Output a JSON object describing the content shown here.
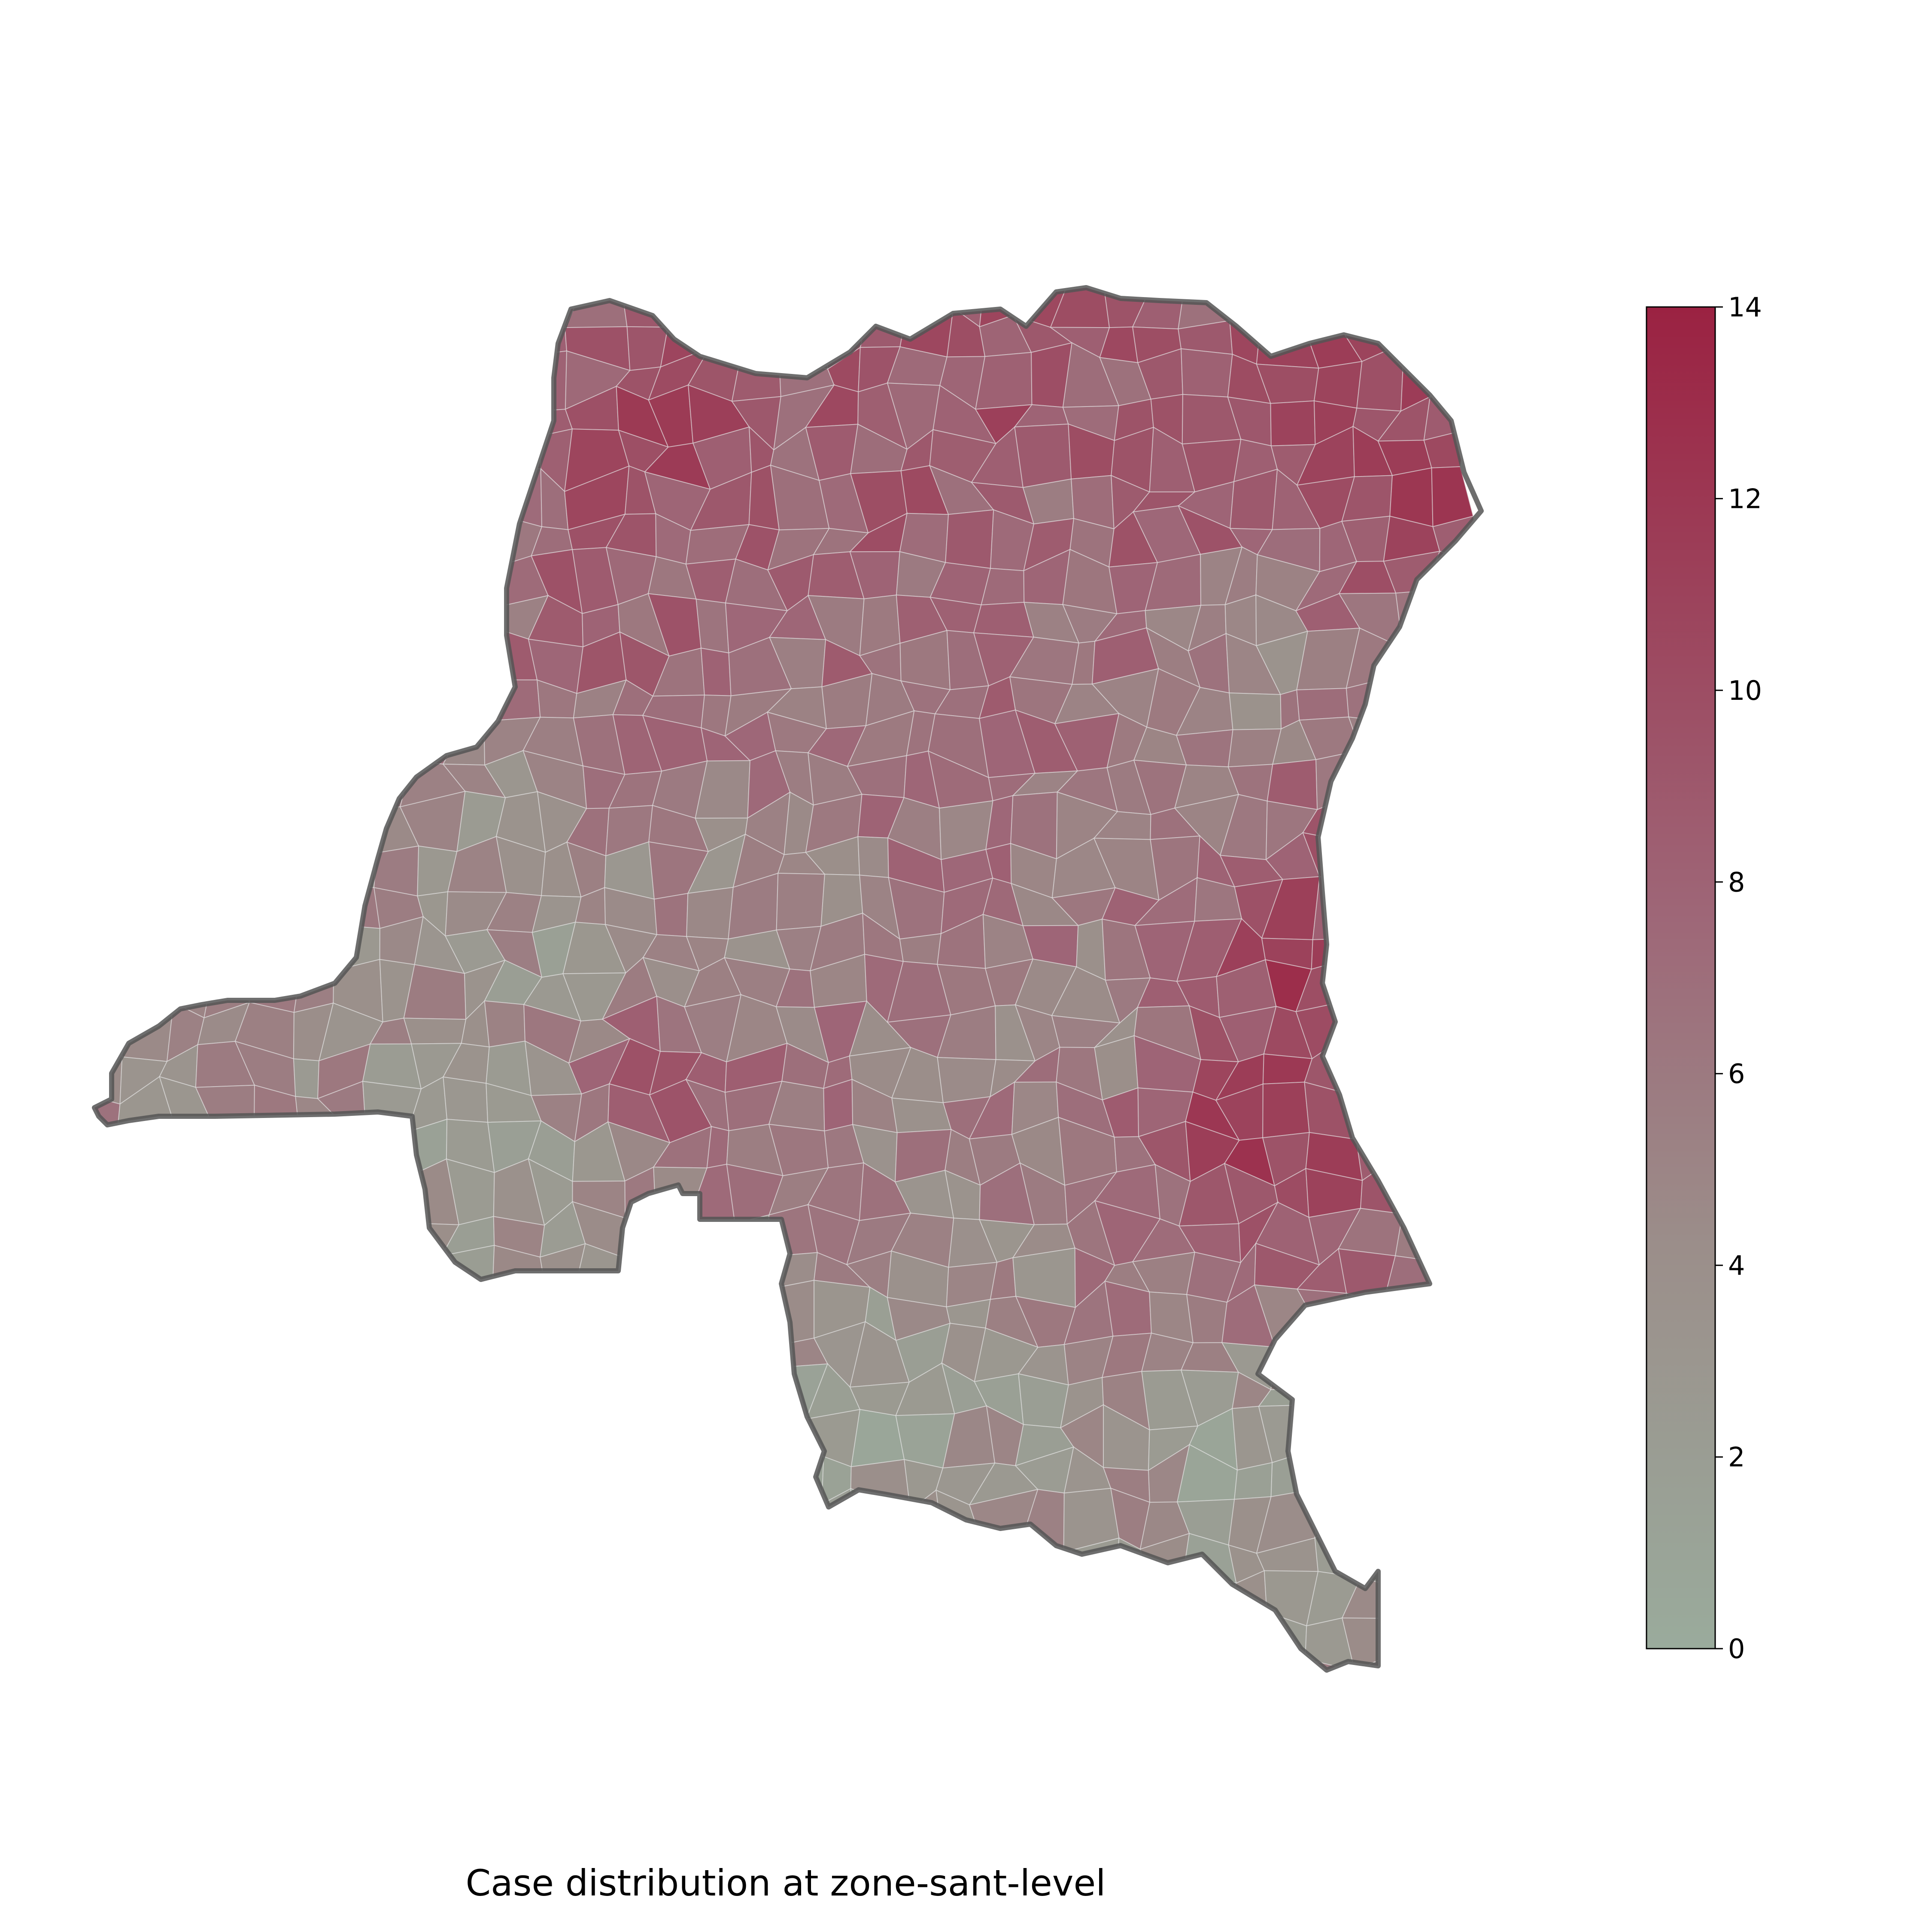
{
  "map": {
    "title": "Case distribution at zone-sant-level",
    "colorbar": {
      "min": 0,
      "max": 14,
      "ticks": [
        "0",
        "2",
        "4",
        "6",
        "8",
        "10",
        "12",
        "14"
      ],
      "low_color": "#9aab9c",
      "high_color": "#9b2242"
    },
    "border_color": "#555555",
    "no_data_color": "#ffffff"
  }
}
